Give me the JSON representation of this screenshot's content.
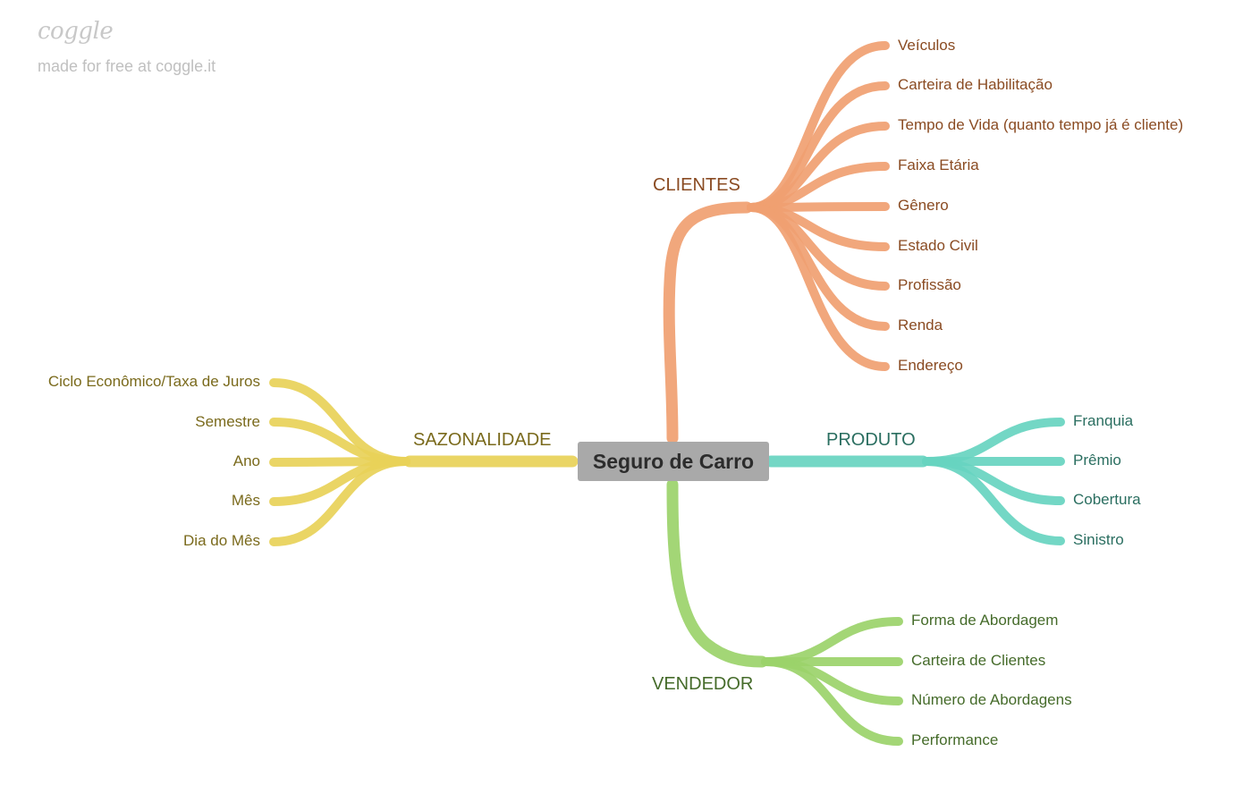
{
  "branding": {
    "logo": "coggle",
    "tagline": "made for free at coggle.it"
  },
  "center": {
    "label": "Seguro de Carro"
  },
  "branches": {
    "clientes": {
      "label": "CLIENTES",
      "colors": {
        "line": "#f0a071",
        "text": "#8a4b22"
      },
      "items": [
        "Veículos",
        "Carteira de Habilitação",
        "Tempo de Vida (quanto tempo já é cliente)",
        "Faixa Etária",
        "Gênero",
        "Estado Civil",
        "Profissão",
        "Renda",
        "Endereço"
      ]
    },
    "produto": {
      "label": "PRODUTO",
      "colors": {
        "line": "#67d4c0",
        "text": "#2a6e60"
      },
      "items": [
        "Franquia",
        "Prêmio",
        "Cobertura",
        "Sinistro"
      ]
    },
    "vendedor": {
      "label": "VENDEDOR",
      "colors": {
        "line": "#9bd36a",
        "text": "#456b2a"
      },
      "items": [
        "Forma de Abordagem",
        "Carteira de Clientes",
        "Número de Abordagens",
        "Performance"
      ]
    },
    "sazonalidade": {
      "label": "SAZONALIDADE",
      "colors": {
        "line": "#e8d158",
        "text": "#7a6a1c"
      },
      "items": [
        "Ciclo Econômico/Taxa de Juros",
        "Semestre",
        "Ano",
        "Mês",
        "Dia do Mês"
      ]
    }
  }
}
